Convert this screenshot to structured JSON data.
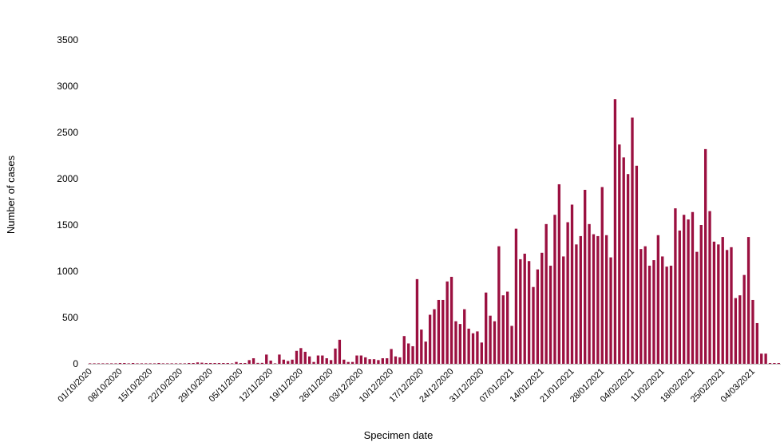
{
  "chart_data": {
    "type": "bar",
    "xlabel": "Specimen date",
    "ylabel": "Number of cases",
    "ylim": [
      0,
      3500
    ],
    "yticks": [
      0,
      500,
      1000,
      1500,
      2000,
      2500,
      3000,
      3500
    ],
    "grid": false,
    "bar_color": "#9B1040",
    "start_date": "01/10/2020",
    "tick_labels": [
      "01/10/2020",
      "08/10/2020",
      "15/10/2020",
      "22/10/2020",
      "29/10/2020",
      "05/11/2020",
      "12/11/2020",
      "19/11/2020",
      "26/11/2020",
      "03/12/2020",
      "10/12/2020",
      "17/12/2020",
      "24/12/2020",
      "31/12/2020",
      "07/01/2021",
      "14/01/2021",
      "21/01/2021",
      "28/01/2021",
      "04/02/2021",
      "11/02/2021",
      "18/02/2021",
      "25/02/2021",
      "04/03/2021"
    ],
    "values": [
      0,
      0,
      0,
      0,
      0,
      0,
      0,
      3,
      5,
      0,
      5,
      0,
      0,
      0,
      0,
      0,
      3,
      0,
      0,
      0,
      0,
      0,
      0,
      5,
      8,
      15,
      12,
      8,
      5,
      5,
      5,
      3,
      3,
      0,
      20,
      8,
      8,
      40,
      60,
      10,
      10,
      100,
      35,
      0,
      100,
      45,
      30,
      45,
      140,
      170,
      130,
      80,
      20,
      90,
      90,
      60,
      40,
      165,
      260,
      45,
      20,
      20,
      90,
      90,
      70,
      50,
      50,
      40,
      60,
      60,
      160,
      80,
      70,
      300,
      220,
      190,
      915,
      370,
      240,
      530,
      590,
      690,
      690,
      890,
      940,
      460,
      430,
      590,
      380,
      330,
      350,
      230,
      770,
      520,
      460,
      1270,
      740,
      780,
      410,
      1460,
      1130,
      1190,
      1110,
      830,
      1020,
      1200,
      1510,
      1060,
      1610,
      1940,
      1160,
      1530,
      1720,
      1290,
      1380,
      1880,
      1510,
      1400,
      1380,
      1910,
      1390,
      1150,
      2860,
      2370,
      2230,
      2050,
      2660,
      2140,
      1240,
      1270,
      1060,
      1120,
      1390,
      1160,
      1050,
      1060,
      1680,
      1440,
      1610,
      1560,
      1640,
      1210,
      1500,
      2320,
      1650,
      1320,
      1290,
      1370,
      1230,
      1260,
      710,
      740,
      960,
      1370,
      690,
      440,
      110,
      110,
      5,
      5,
      5
    ]
  }
}
